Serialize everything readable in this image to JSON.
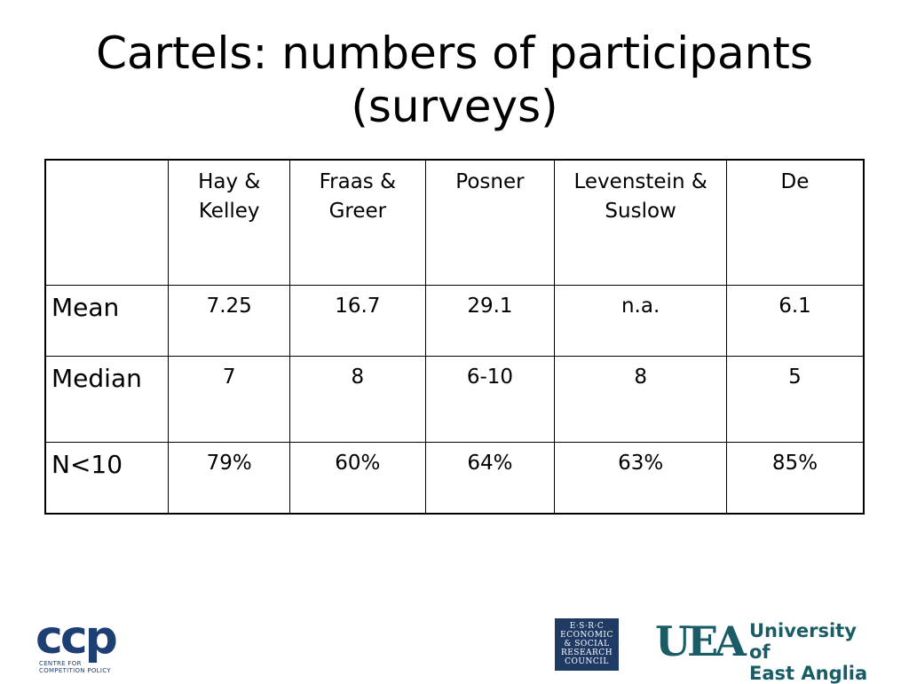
{
  "slide": {
    "title_line1": "Cartels: numbers of participants",
    "title_line2": "(surveys)"
  },
  "table": {
    "columns": [
      "",
      "Hay & Kelley",
      "Fraas & Greer",
      "Posner",
      "Levenstein & Suslow",
      "De"
    ],
    "rows": [
      {
        "label": "Mean",
        "values": [
          "7.25",
          "16.7",
          "29.1",
          "n.a.",
          "6.1"
        ]
      },
      {
        "label": "Median",
        "values": [
          "7",
          "8",
          "6-10",
          "8",
          "5"
        ]
      },
      {
        "label": "N<10",
        "values": [
          "79%",
          "60%",
          "64%",
          "63%",
          "85%"
        ]
      }
    ]
  },
  "logos": {
    "ccp": {
      "letters": "ccp",
      "subtitle_line1": "CENTRE FOR",
      "subtitle_line2": "COMPETITION POLICY"
    },
    "esrc": {
      "line1": "E·S·R·C",
      "line2": "ECONOMIC",
      "line3": "& SOCIAL",
      "line4": "RESEARCH",
      "line5": "COUNCIL"
    },
    "uea": {
      "mark": "UEA",
      "name_line1": "University of",
      "name_line2": "East Anglia"
    }
  },
  "colors": {
    "ccp_blue": "#1d3f73",
    "esrc_navy": "#1f3a63",
    "uea_teal": "#1a5c66"
  }
}
